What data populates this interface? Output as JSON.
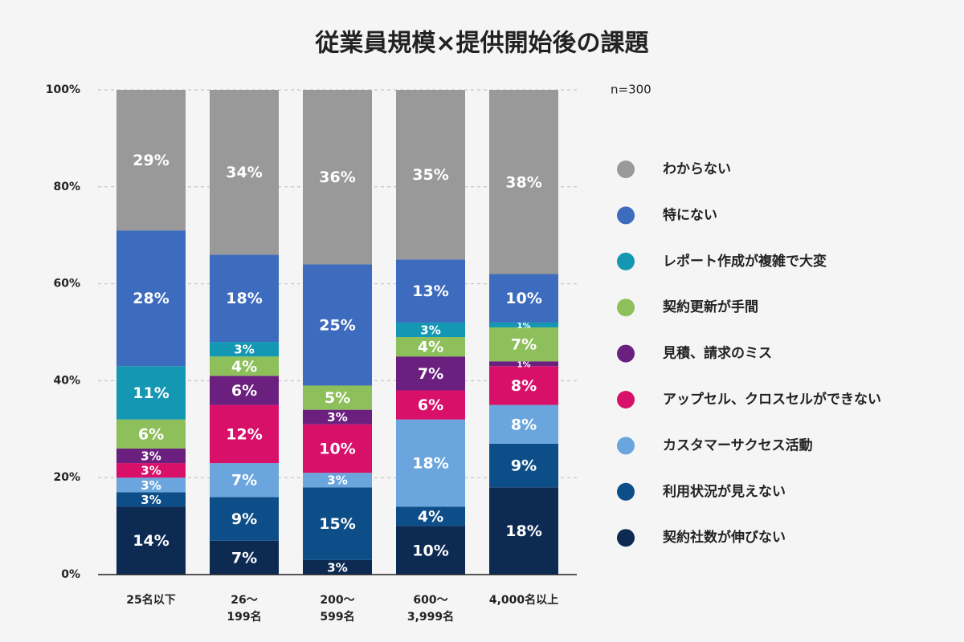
{
  "chart_data": {
    "type": "stacked-bar-100",
    "title": "従業員規模×提供開始後の課題",
    "annotation": "n=300",
    "categories": [
      [
        "25名以下"
      ],
      [
        "26〜",
        "199名"
      ],
      [
        "200〜",
        "599名"
      ],
      [
        "600〜",
        "3,999名"
      ],
      [
        "4,000名以上"
      ]
    ],
    "ylim": [
      0,
      100
    ],
    "yticks": [
      {
        "value": 0,
        "label": "0%"
      },
      {
        "value": 20,
        "label": "20%"
      },
      {
        "value": 40,
        "label": "40%"
      },
      {
        "value": 60,
        "label": "60%"
      },
      {
        "value": 80,
        "label": "80%"
      },
      {
        "value": 100,
        "label": "100%"
      }
    ],
    "grid": true,
    "series": [
      {
        "name": "契約社数が伸びない",
        "color": "#0d2a52",
        "values": [
          14,
          7,
          3,
          10,
          18
        ],
        "value_labels": [
          "14%",
          "7%",
          "3%",
          "10%",
          "18%"
        ]
      },
      {
        "name": "利用状況が見えない",
        "color": "#0e4e88",
        "values": [
          3,
          9,
          15,
          4,
          9
        ],
        "value_labels": [
          "3%",
          "9%",
          "15%",
          "4%",
          "9%"
        ]
      },
      {
        "name": "カスタマーサクセス活動",
        "color": "#6aa5dd",
        "values": [
          3,
          7,
          3,
          18,
          8
        ],
        "value_labels": [
          "3%",
          "7%",
          "3%",
          "18%",
          "8%"
        ]
      },
      {
        "name": "アップセル、クロスセルができない",
        "color": "#d8106a",
        "values": [
          3,
          12,
          10,
          6,
          8
        ],
        "value_labels": [
          "3%",
          "12%",
          "10%",
          "6%",
          "8%"
        ]
      },
      {
        "name": "見積、請求のミス",
        "color": "#6b1f7e",
        "values": [
          3,
          6,
          3,
          7,
          1
        ],
        "value_labels": [
          "3%",
          "6%",
          "3%",
          "7%",
          "1%"
        ]
      },
      {
        "name": "契約更新が手間",
        "color": "#8dbf5a",
        "values": [
          6,
          4,
          5,
          4,
          7
        ],
        "value_labels": [
          "6%",
          "4%",
          "5%",
          "4%",
          "7%"
        ]
      },
      {
        "name": "レポート作成が複雑で大変",
        "color": "#1497b3",
        "values": [
          11,
          3,
          null,
          3,
          1
        ],
        "value_labels": [
          "11%",
          "3%",
          null,
          "3%",
          "1%"
        ]
      },
      {
        "name": "特にない",
        "color": "#3d6bbd",
        "values": [
          28,
          18,
          25,
          13,
          10
        ],
        "value_labels": [
          "28%",
          "18%",
          "25%",
          "13%",
          "10%"
        ]
      },
      {
        "name": "わからない",
        "color": "#999999",
        "values": [
          29,
          34,
          36,
          35,
          38
        ],
        "value_labels": [
          "29%",
          "34%",
          "36%",
          "35%",
          "38%"
        ]
      }
    ]
  }
}
